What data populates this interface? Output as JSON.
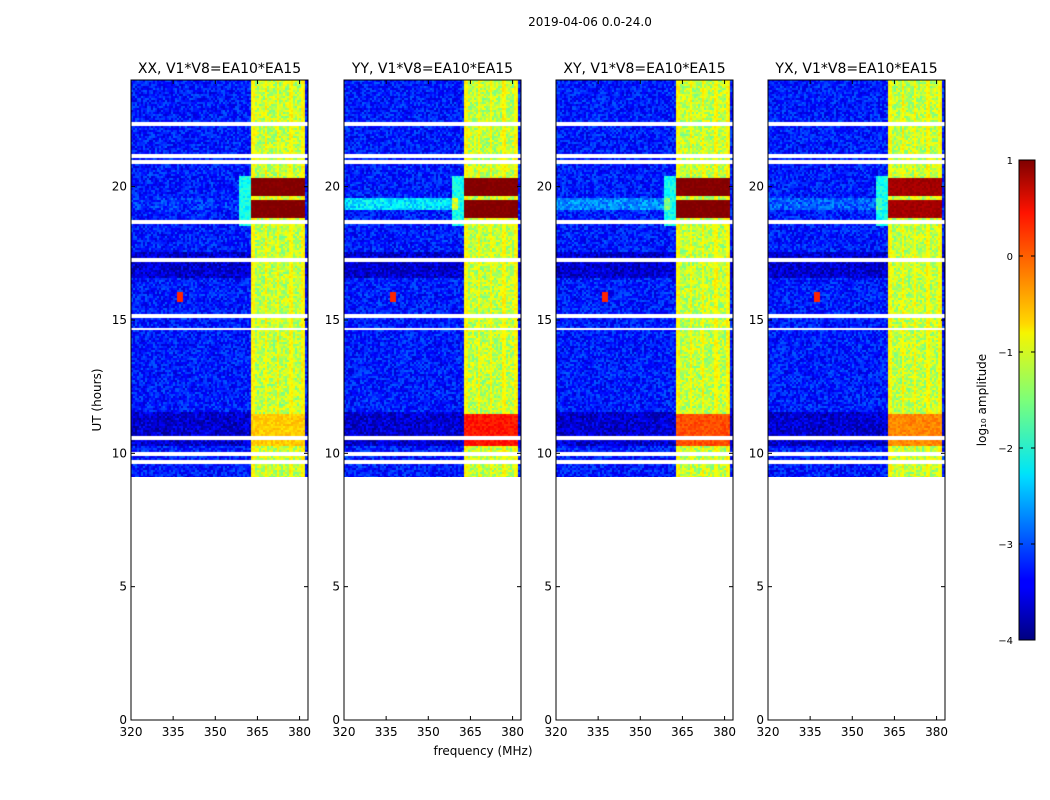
{
  "figure_title": "2019-04-06 0.0-24.0",
  "chart_data": {
    "type": "heatmap",
    "title": "2019-04-06 0.0-24.0",
    "xlabel": "frequency (MHz)",
    "ylabel": "UT (hours)",
    "xlim": [
      320,
      383
    ],
    "ylim": [
      0,
      24
    ],
    "x_ticks": [
      320,
      335,
      350,
      365,
      380
    ],
    "y_ticks": [
      0,
      5,
      10,
      15,
      20
    ],
    "data_time_range_hours": [
      9.1,
      24.0
    ],
    "panels": [
      {
        "name": "XX",
        "title": "XX, V1*V8=EA10*EA15",
        "low_band_strength": 0.05,
        "flare_19_20": 1.0,
        "flare_11": 0.3
      },
      {
        "name": "YY",
        "title": "YY, V1*V8=EA10*EA15",
        "low_band_strength": 0.45,
        "flare_19_20": 1.0,
        "flare_11": 0.95
      },
      {
        "name": "XY",
        "title": "XY, V1*V8=EA10*EA15",
        "low_band_strength": 0.25,
        "flare_19_20": 1.0,
        "flare_11": 0.75
      },
      {
        "name": "YX",
        "title": "YX, V1*V8=EA10*EA15",
        "low_band_strength": 0.15,
        "flare_19_20": 0.85,
        "flare_11": 0.55
      }
    ],
    "features": {
      "high_band_mhz": [
        362.5,
        381.5
      ],
      "rfi_point": {
        "freq_mhz": 337,
        "time_hours": 15.9
      },
      "flare_times_hours": [
        19.2,
        20.0,
        10.9
      ],
      "gap_times_hours": [
        22.4,
        21.2,
        20.95,
        18.7,
        17.3,
        15.2,
        14.7,
        10.6,
        10.0,
        9.7
      ]
    },
    "colorbar": {
      "label": "log₁₀ amplitude",
      "min": -4,
      "max": 1,
      "ticks": [
        -4,
        -3,
        -2,
        -1,
        0,
        1
      ],
      "tick_labels": [
        "−4",
        "−3",
        "−2",
        "−1",
        "0",
        "1"
      ],
      "colormap": "jet"
    }
  }
}
